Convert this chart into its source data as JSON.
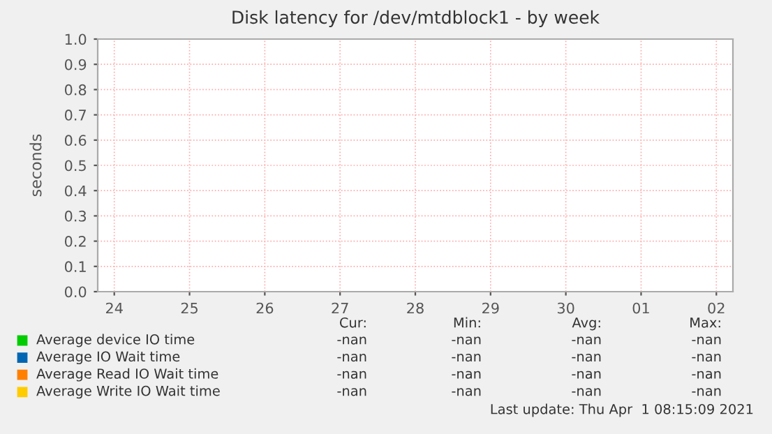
{
  "chart_data": {
    "type": "line",
    "title": "Disk latency for /dev/mtdblock1 - by week",
    "ylabel": "seconds",
    "categories": [
      "24",
      "25",
      "26",
      "27",
      "28",
      "29",
      "30",
      "01",
      "02"
    ],
    "ylim": [
      0,
      1.0
    ],
    "yticks": [
      {
        "value": 0,
        "label": "0.0"
      },
      {
        "value": 0.1,
        "label": "0.1"
      },
      {
        "value": 0.2,
        "label": "0.2"
      },
      {
        "value": 0.3,
        "label": "0.3"
      },
      {
        "value": 0.4,
        "label": "0.4"
      },
      {
        "value": 0.5,
        "label": "0.5"
      },
      {
        "value": 0.6,
        "label": "0.6"
      },
      {
        "value": 0.7,
        "label": "0.7"
      },
      {
        "value": 0.8,
        "label": "0.8"
      },
      {
        "value": 0.9,
        "label": "0.9"
      },
      {
        "value": 1.0,
        "label": "1.0"
      }
    ],
    "grid": true,
    "legend": "bottom",
    "series": [
      {
        "name": "Average device IO time",
        "color": "#00cc00",
        "values": [
          null,
          null,
          null,
          null,
          null,
          null,
          null,
          null,
          null
        ]
      },
      {
        "name": "Average IO Wait time",
        "color": "#0066b3",
        "values": [
          null,
          null,
          null,
          null,
          null,
          null,
          null,
          null,
          null
        ]
      },
      {
        "name": "Average Read IO Wait time",
        "color": "#ff8000",
        "values": [
          null,
          null,
          null,
          null,
          null,
          null,
          null,
          null,
          null
        ]
      },
      {
        "name": "Average Write IO Wait time",
        "color": "#ffcc00",
        "values": [
          null,
          null,
          null,
          null,
          null,
          null,
          null,
          null,
          null
        ]
      }
    ],
    "annotations": [
      "Cur:",
      "Min:",
      "Avg:",
      "Max:",
      "-nan",
      "-nan",
      "-nan",
      "-nan",
      "-nan",
      "-nan",
      "-nan",
      "-nan",
      "-nan",
      "-nan",
      "-nan",
      "-nan",
      "-nan",
      "-nan",
      "-nan",
      "-nan",
      "Last update: Thu Apr  1 08:15:09 2021"
    ]
  }
}
